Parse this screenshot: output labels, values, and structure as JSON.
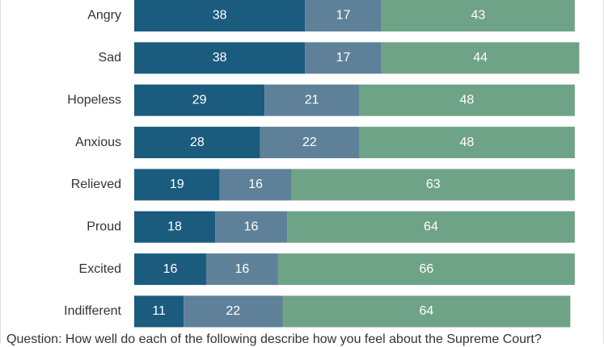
{
  "footnote": "Question: How well do each of the following describe how you feel about the Supreme Court?",
  "chart_data": {
    "type": "bar",
    "orientation": "horizontal",
    "stacked": true,
    "categories": [
      "Angry",
      "Sad",
      "Hopeless",
      "Anxious",
      "Relieved",
      "Proud",
      "Excited",
      "Indifferent"
    ],
    "series": [
      {
        "values": [
          38,
          38,
          29,
          28,
          19,
          18,
          16,
          11
        ],
        "color": "#1b5b7e"
      },
      {
        "values": [
          17,
          17,
          21,
          22,
          16,
          16,
          16,
          22
        ],
        "color": "#5e8199"
      },
      {
        "values": [
          43,
          44,
          48,
          48,
          63,
          64,
          66,
          64
        ],
        "color": "#6fa387"
      }
    ],
    "xlim": [
      0,
      100
    ],
    "grid": false,
    "legend": "none"
  }
}
